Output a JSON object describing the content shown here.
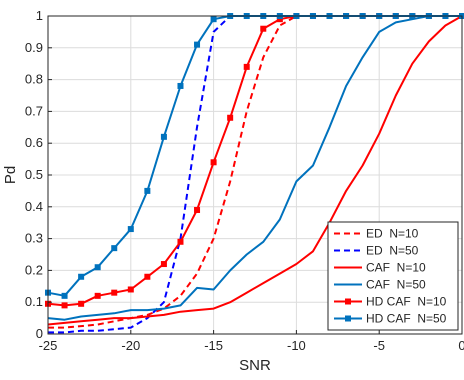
{
  "chart_data": {
    "type": "line",
    "title": "",
    "xlabel": "SNR",
    "ylabel": "Pd",
    "xlim": [
      -25,
      0
    ],
    "ylim": [
      0,
      1
    ],
    "grid": true,
    "legend_position": "bottom-right",
    "x_ticks": [
      "-25",
      "-20",
      "-15",
      "-10",
      "-5",
      "0"
    ],
    "y_ticks": [
      "0",
      "0.1",
      "0.2",
      "0.3",
      "0.4",
      "0.5",
      "0.6",
      "0.7",
      "0.8",
      "0.9",
      "1"
    ],
    "series": [
      {
        "name": "ED  N=10",
        "color": "#ff0000",
        "dash": true,
        "marker": false,
        "x": [
          -25,
          -24,
          -23,
          -22,
          -21,
          -20,
          -19,
          -18,
          -17,
          -16,
          -15,
          -14,
          -13,
          -12,
          -11,
          -10,
          -9,
          -8,
          -7,
          -6,
          -5,
          -4,
          -3,
          -2,
          -1,
          0
        ],
        "y": [
          0.02,
          0.02,
          0.025,
          0.03,
          0.04,
          0.05,
          0.06,
          0.08,
          0.12,
          0.19,
          0.3,
          0.48,
          0.7,
          0.87,
          0.97,
          1,
          1,
          1,
          1,
          1,
          1,
          1,
          1,
          1,
          1,
          1
        ]
      },
      {
        "name": "ED  N=50",
        "color": "#0000ff",
        "dash": true,
        "marker": false,
        "x": [
          -25,
          -24,
          -23,
          -22,
          -21,
          -20,
          -19,
          -18,
          -17,
          -16,
          -15,
          -14,
          -13,
          -12,
          -11,
          -10,
          -9,
          -8,
          -7,
          -6,
          -5,
          -4,
          -3,
          -2,
          -1,
          0
        ],
        "y": [
          0.005,
          0.005,
          0.01,
          0.01,
          0.015,
          0.02,
          0.05,
          0.1,
          0.3,
          0.65,
          0.95,
          1,
          1,
          1,
          1,
          1,
          1,
          1,
          1,
          1,
          1,
          1,
          1,
          1,
          1,
          1
        ]
      },
      {
        "name": "CAF  N=10",
        "color": "#ff0000",
        "dash": false,
        "marker": false,
        "x": [
          -25,
          -24,
          -23,
          -22,
          -21,
          -20,
          -19,
          -18,
          -17,
          -16,
          -15,
          -14,
          -13,
          -12,
          -11,
          -10,
          -9,
          -8,
          -7,
          -6,
          -5,
          -4,
          -3,
          -2,
          -1,
          0
        ],
        "y": [
          0.03,
          0.035,
          0.04,
          0.045,
          0.05,
          0.05,
          0.055,
          0.06,
          0.07,
          0.075,
          0.08,
          0.1,
          0.13,
          0.16,
          0.19,
          0.22,
          0.26,
          0.35,
          0.45,
          0.53,
          0.63,
          0.75,
          0.85,
          0.92,
          0.97,
          1
        ]
      },
      {
        "name": "CAF  N=50",
        "color": "#0072bd",
        "dash": false,
        "marker": false,
        "x": [
          -25,
          -24,
          -23,
          -22,
          -21,
          -20,
          -19,
          -18,
          -17,
          -16,
          -15,
          -14,
          -13,
          -12,
          -11,
          -10,
          -9,
          -8,
          -7,
          -6,
          -5,
          -4,
          -3,
          -2,
          -1,
          0
        ],
        "y": [
          0.05,
          0.045,
          0.055,
          0.06,
          0.065,
          0.075,
          0.075,
          0.08,
          0.09,
          0.145,
          0.14,
          0.2,
          0.25,
          0.29,
          0.36,
          0.48,
          0.53,
          0.65,
          0.78,
          0.87,
          0.95,
          0.98,
          0.99,
          1,
          1,
          1
        ]
      },
      {
        "name": "HD CAF  N=10",
        "color": "#ff0000",
        "dash": false,
        "marker": true,
        "x": [
          -25,
          -24,
          -23,
          -22,
          -21,
          -20,
          -19,
          -18,
          -17,
          -16,
          -15,
          -14,
          -13,
          -12,
          -11,
          -10,
          -9,
          -8,
          -7,
          -6,
          -5,
          -4,
          -3,
          -2,
          -1,
          0
        ],
        "y": [
          0.095,
          0.09,
          0.095,
          0.12,
          0.13,
          0.14,
          0.18,
          0.22,
          0.29,
          0.39,
          0.54,
          0.68,
          0.84,
          0.96,
          0.99,
          1,
          1,
          1,
          1,
          1,
          1,
          1,
          1,
          1,
          1,
          1
        ]
      },
      {
        "name": "HD CAF  N=50",
        "color": "#0072bd",
        "dash": false,
        "marker": true,
        "x": [
          -25,
          -24,
          -23,
          -22,
          -21,
          -20,
          -19,
          -18,
          -17,
          -16,
          -15,
          -14,
          -13,
          -12,
          -11,
          -10,
          -9,
          -8,
          -7,
          -6,
          -5,
          -4,
          -3,
          -2,
          -1,
          0
        ],
        "y": [
          0.13,
          0.12,
          0.18,
          0.21,
          0.27,
          0.33,
          0.45,
          0.62,
          0.78,
          0.91,
          0.99,
          1,
          1,
          1,
          1,
          1,
          1,
          1,
          1,
          1,
          1,
          1,
          1,
          1,
          1,
          1
        ]
      }
    ]
  }
}
